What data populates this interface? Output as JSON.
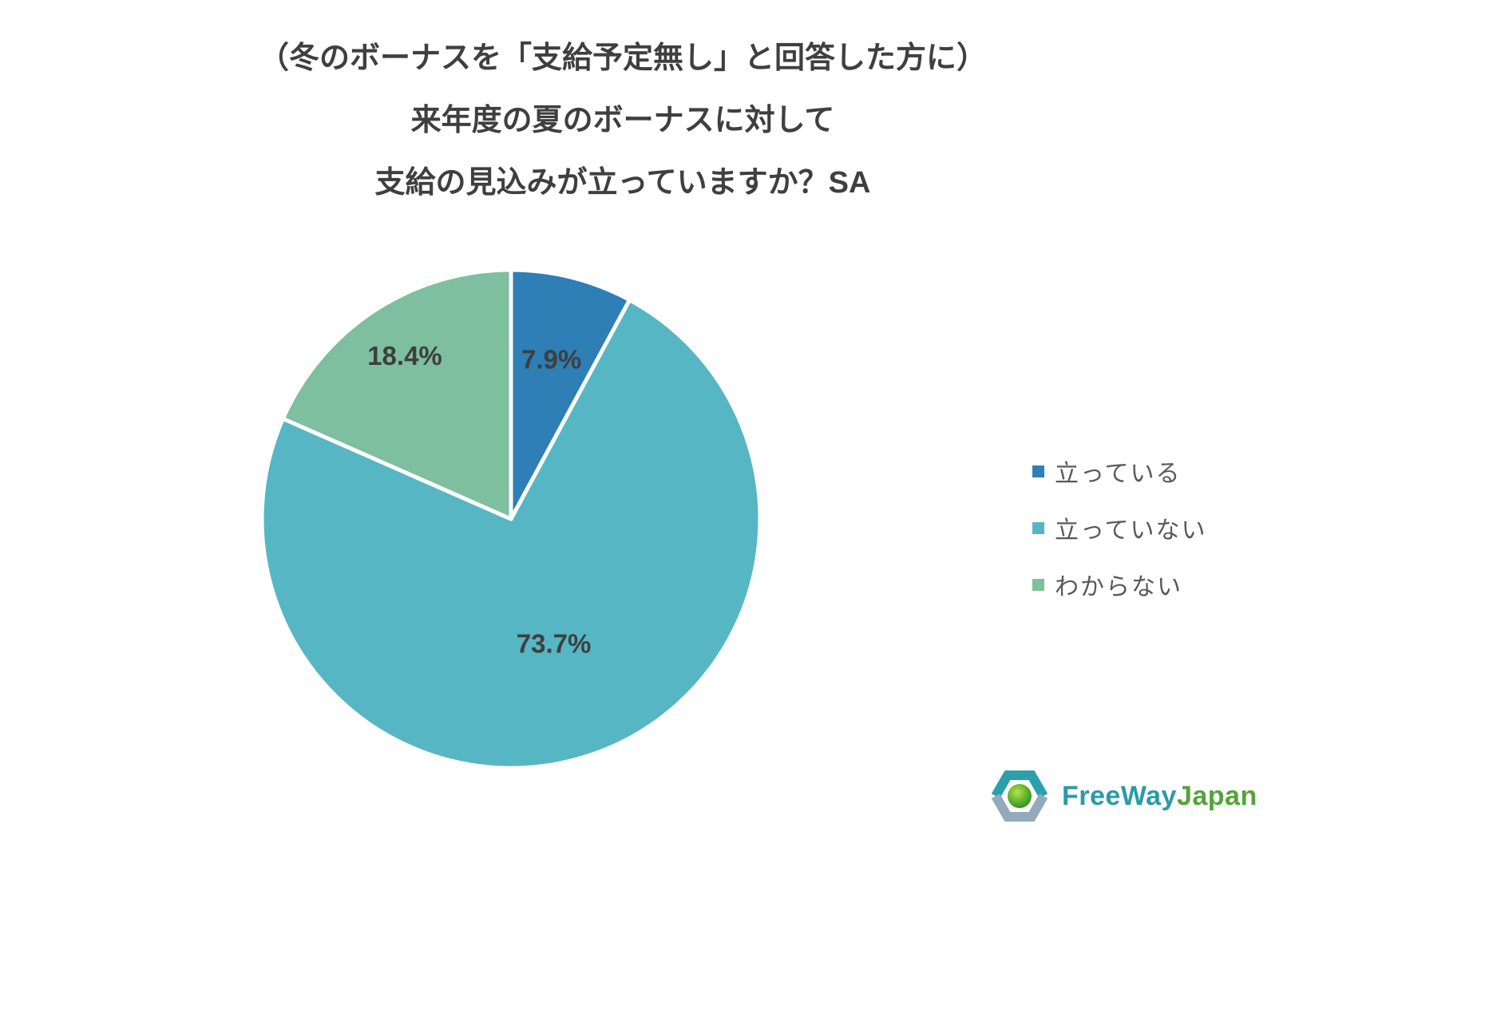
{
  "title": {
    "line1": "（冬のボーナスを「支給予定無し」と回答した方に）",
    "line2": "来年度の夏のボーナスに対して",
    "line3": "支給の見込みが立っていますか？SA"
  },
  "chart_data": {
    "type": "pie",
    "categories": [
      "立っている",
      "立っていない",
      "わからない"
    ],
    "values": [
      7.9,
      73.7,
      18.4
    ],
    "data_labels": [
      "7.9%",
      "73.7%",
      "18.4%"
    ],
    "colors": [
      "#2d7fb5",
      "#57b6c4",
      "#7dbf9e"
    ],
    "start_angle": 0,
    "direction": "clockwise",
    "legend_position": "right",
    "slice_border_color": "#ffffff"
  },
  "legend": {
    "items": [
      {
        "label": "立っている"
      },
      {
        "label": "立っていない"
      },
      {
        "label": "わからない"
      }
    ]
  },
  "brand": {
    "name_part1": "FreeWay",
    "name_part2": "Japan",
    "logo": "freeway-japan-hexagon-logo",
    "colors": {
      "part1": "#2b9aa8",
      "part2": "#55a33a"
    }
  }
}
